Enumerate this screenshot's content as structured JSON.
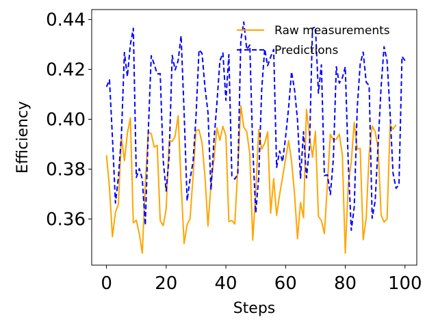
{
  "chart_data": {
    "type": "line",
    "title": "",
    "xlabel": "Steps",
    "ylabel": "Efficiency",
    "xlim": [
      -4.95,
      103.95
    ],
    "ylim": [
      0.3415,
      0.444
    ],
    "xticks": [
      0,
      20,
      40,
      60,
      80,
      100
    ],
    "yticks": [
      0.36,
      0.38,
      0.4,
      0.42,
      0.44
    ],
    "ytick_labels": [
      "0.36",
      "0.38",
      "0.40",
      "0.42",
      "0.44"
    ],
    "grid": false,
    "legend_position": "top-right",
    "series": [
      {
        "name": "Raw measurements",
        "color": "#ffa500",
        "style": "solid",
        "values": [
          0.3856,
          0.3725,
          0.3529,
          0.3627,
          0.366,
          0.3931,
          0.3834,
          0.3943,
          0.4005,
          0.3585,
          0.3595,
          0.354,
          0.3463,
          0.374,
          0.3949,
          0.3942,
          0.3888,
          0.3895,
          0.3594,
          0.3573,
          0.364,
          0.3915,
          0.3911,
          0.3932,
          0.4014,
          0.3745,
          0.3502,
          0.3578,
          0.36,
          0.3772,
          0.3955,
          0.3958,
          0.3905,
          0.377,
          0.3572,
          0.3741,
          0.3838,
          0.3966,
          0.3916,
          0.3972,
          0.3933,
          0.359,
          0.3594,
          0.358,
          0.3804,
          0.4054,
          0.3968,
          0.395,
          0.386,
          0.3515,
          0.3705,
          0.3958,
          0.388,
          0.3904,
          0.395,
          0.3623,
          0.3762,
          0.3615,
          0.3698,
          0.3768,
          0.3841,
          0.3914,
          0.3833,
          0.37,
          0.3521,
          0.3666,
          0.3605,
          0.404,
          0.3935,
          0.3848,
          0.3952,
          0.361,
          0.3594,
          0.3541,
          0.374,
          0.394,
          0.3916,
          0.392,
          0.394,
          0.3858,
          0.3463,
          0.374,
          0.383,
          0.3987,
          0.388,
          0.3883,
          0.3517,
          0.3605,
          0.386,
          0.3973,
          0.395,
          0.3882,
          0.3616,
          0.3588,
          0.36,
          0.3978,
          0.396,
          0.3978
        ]
      },
      {
        "name": "Predictions",
        "color": "#0000ff",
        "style": "dashed",
        "values": [
          0.413,
          0.4158,
          0.3927,
          0.3664,
          0.3767,
          0.3935,
          0.4268,
          0.4171,
          0.43,
          0.4365,
          0.3767,
          0.3802,
          0.376,
          0.3575,
          0.3953,
          0.4255,
          0.422,
          0.4182,
          0.4183,
          0.3834,
          0.3712,
          0.3854,
          0.4256,
          0.4198,
          0.4235,
          0.4335,
          0.403,
          0.3673,
          0.376,
          0.3829,
          0.4011,
          0.4278,
          0.4265,
          0.4128,
          0.4027,
          0.3716,
          0.3913,
          0.4066,
          0.4234,
          0.4266,
          0.4076,
          0.4259,
          0.3773,
          0.376,
          0.378,
          0.4318,
          0.439,
          0.428,
          0.4298,
          0.3887,
          0.3625,
          0.3767,
          0.412,
          0.4282,
          0.4215,
          0.425,
          0.428,
          0.3807,
          0.3873,
          0.3829,
          0.3929,
          0.4046,
          0.4191,
          0.4118,
          0.3998,
          0.3764,
          0.395,
          0.3765,
          0.3885,
          0.4365,
          0.437,
          0.4105,
          0.4218,
          0.3774,
          0.3777,
          0.3698,
          0.384,
          0.4211,
          0.4145,
          0.4166,
          0.421,
          0.3823,
          0.3555,
          0.3647,
          0.4046,
          0.4221,
          0.4269,
          0.4149,
          0.4135,
          0.3603,
          0.3672,
          0.3898,
          0.4132,
          0.4291,
          0.4235,
          0.4025,
          0.3784,
          0.3723,
          0.3738,
          0.4252,
          0.4235
        ]
      }
    ]
  }
}
